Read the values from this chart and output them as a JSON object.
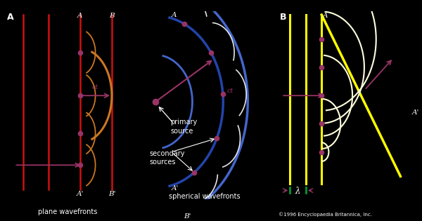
{
  "bg_color": "#000000",
  "red_color": "#cc1111",
  "orange_color": "#cc7722",
  "magenta_color": "#993366",
  "yellow_color": "#ffff00",
  "blue_dark": "#2244aa",
  "blue_light": "#4466cc",
  "white_color": "#ffffff",
  "cream_color": "#ffffdd",
  "green_color": "#009933",
  "label_A": "A",
  "label_B": "B",
  "label_Ap": "A'",
  "label_Bp": "B'",
  "label_ct": "ct",
  "label_plane": "plane wavefronts",
  "label_spherical": "spherical wavefronts",
  "label_primary": "primary\nsource",
  "label_secondary": "secondary\nsources",
  "label_lambda": "λ",
  "label_panelA": "A",
  "label_panelB": "B",
  "label_copyright": "©1996 Encyclopaedia Britannica, Inc.",
  "fig_width": 6.0,
  "fig_height": 3.15
}
